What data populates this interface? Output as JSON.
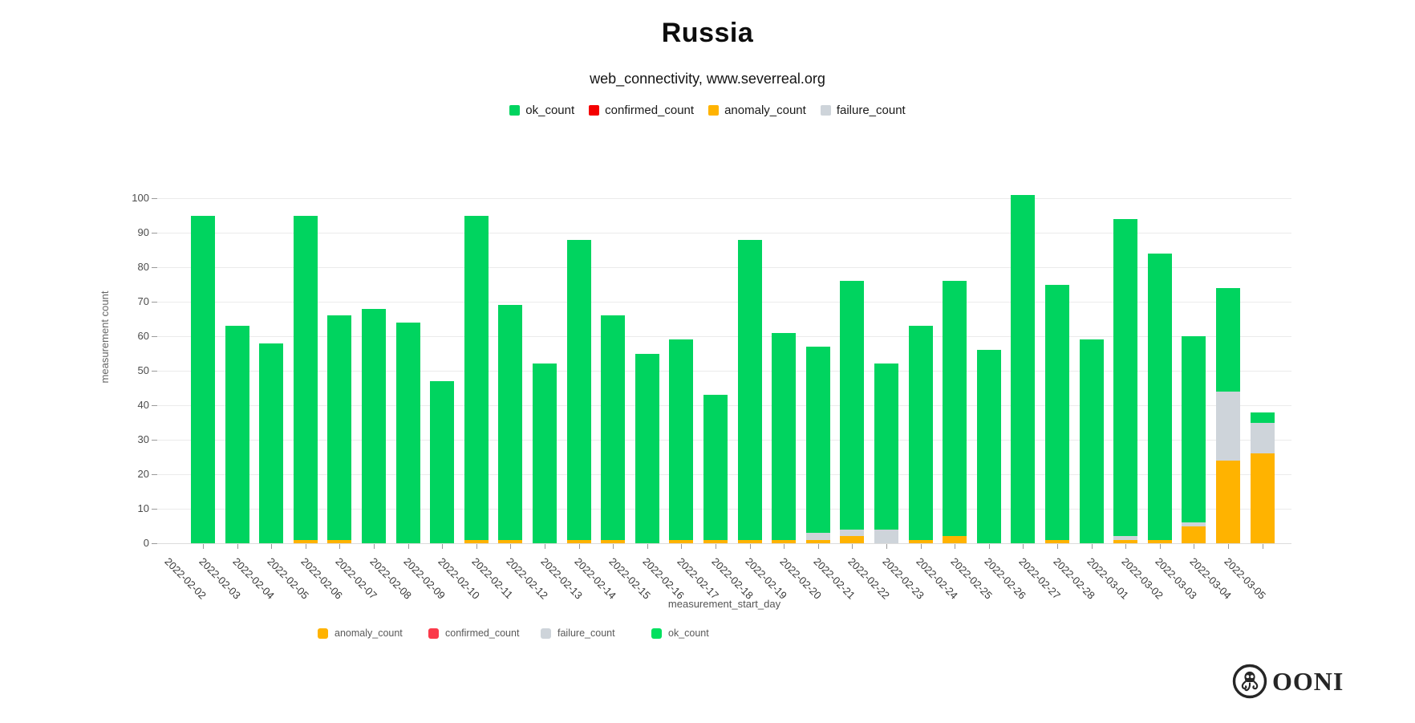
{
  "header": {
    "title": "Russia",
    "subtitle": "web_connectivity, www.severreal.org"
  },
  "legend_top": {
    "items": [
      {
        "label": "ok_count",
        "color": "#00d45f"
      },
      {
        "label": "confirmed_count",
        "color": "#f40000"
      },
      {
        "label": "anomaly_count",
        "color": "#ffb300"
      },
      {
        "label": "failure_count",
        "color": "#ced4da"
      }
    ]
  },
  "legend_bottom": {
    "items": [
      {
        "label": "anomaly_count",
        "color": "#ffb300"
      },
      {
        "label": "confirmed_count",
        "color": "#fb3a4a"
      },
      {
        "label": "failure_count",
        "color": "#ced4da"
      },
      {
        "label": "ok_count",
        "color": "#00e05f"
      }
    ]
  },
  "chart_data": {
    "type": "bar",
    "stacked": true,
    "title": "Russia",
    "subtitle": "web_connectivity, www.severreal.org",
    "xlabel": "measurement_start_day",
    "ylabel": "measurement count",
    "ylim": [
      0,
      100
    ],
    "yticks": [
      0,
      10,
      20,
      30,
      40,
      50,
      60,
      70,
      80,
      90,
      100
    ],
    "grid": true,
    "legend_position": "top",
    "categories": [
      "2022-02-02",
      "2022-02-03",
      "2022-02-04",
      "2022-02-05",
      "2022-02-06",
      "2022-02-07",
      "2022-02-08",
      "2022-02-09",
      "2022-02-10",
      "2022-02-11",
      "2022-02-12",
      "2022-02-13",
      "2022-02-14",
      "2022-02-15",
      "2022-02-16",
      "2022-02-17",
      "2022-02-18",
      "2022-02-19",
      "2022-02-20",
      "2022-02-21",
      "2022-02-22",
      "2022-02-23",
      "2022-02-24",
      "2022-02-25",
      "2022-02-26",
      "2022-02-27",
      "2022-02-28",
      "2022-03-01",
      "2022-03-02",
      "2022-03-03",
      "2022-03-04",
      "2022-03-05"
    ],
    "series": [
      {
        "name": "anomaly_count",
        "color": "#ffb300",
        "values": [
          0,
          0,
          0,
          1,
          1,
          0,
          0,
          0,
          1,
          1,
          0,
          1,
          1,
          0,
          1,
          1,
          1,
          1,
          1,
          2,
          0,
          1,
          2,
          0,
          0,
          1,
          0,
          1,
          1,
          5,
          24,
          26
        ]
      },
      {
        "name": "confirmed_count",
        "color": "#f40000",
        "values": [
          0,
          0,
          0,
          0,
          0,
          0,
          0,
          0,
          0,
          0,
          0,
          0,
          0,
          0,
          0,
          0,
          0,
          0,
          0,
          0,
          0,
          0,
          0,
          0,
          0,
          0,
          0,
          0,
          0,
          0,
          0,
          0
        ]
      },
      {
        "name": "failure_count",
        "color": "#ced4da",
        "values": [
          0,
          0,
          0,
          0,
          0,
          0,
          0,
          0,
          0,
          0,
          0,
          0,
          0,
          0,
          0,
          0,
          0,
          0,
          2,
          2,
          4,
          0,
          0,
          0,
          0,
          0,
          0,
          1,
          0,
          1,
          20,
          9
        ]
      },
      {
        "name": "ok_count",
        "color": "#00d45f",
        "values": [
          95,
          63,
          58,
          94,
          65,
          68,
          64,
          47,
          94,
          68,
          52,
          87,
          65,
          55,
          58,
          42,
          87,
          60,
          54,
          72,
          48,
          62,
          74,
          56,
          101,
          74,
          59,
          92,
          83,
          54,
          30,
          3
        ]
      }
    ],
    "totals": [
      95,
      63,
      58,
      95,
      66,
      68,
      64,
      47,
      95,
      69,
      52,
      88,
      66,
      55,
      59,
      43,
      88,
      61,
      57,
      76,
      52,
      63,
      76,
      56,
      101,
      75,
      59,
      94,
      84,
      60,
      74,
      38
    ]
  },
  "branding": {
    "logo_text": "OONI"
  }
}
